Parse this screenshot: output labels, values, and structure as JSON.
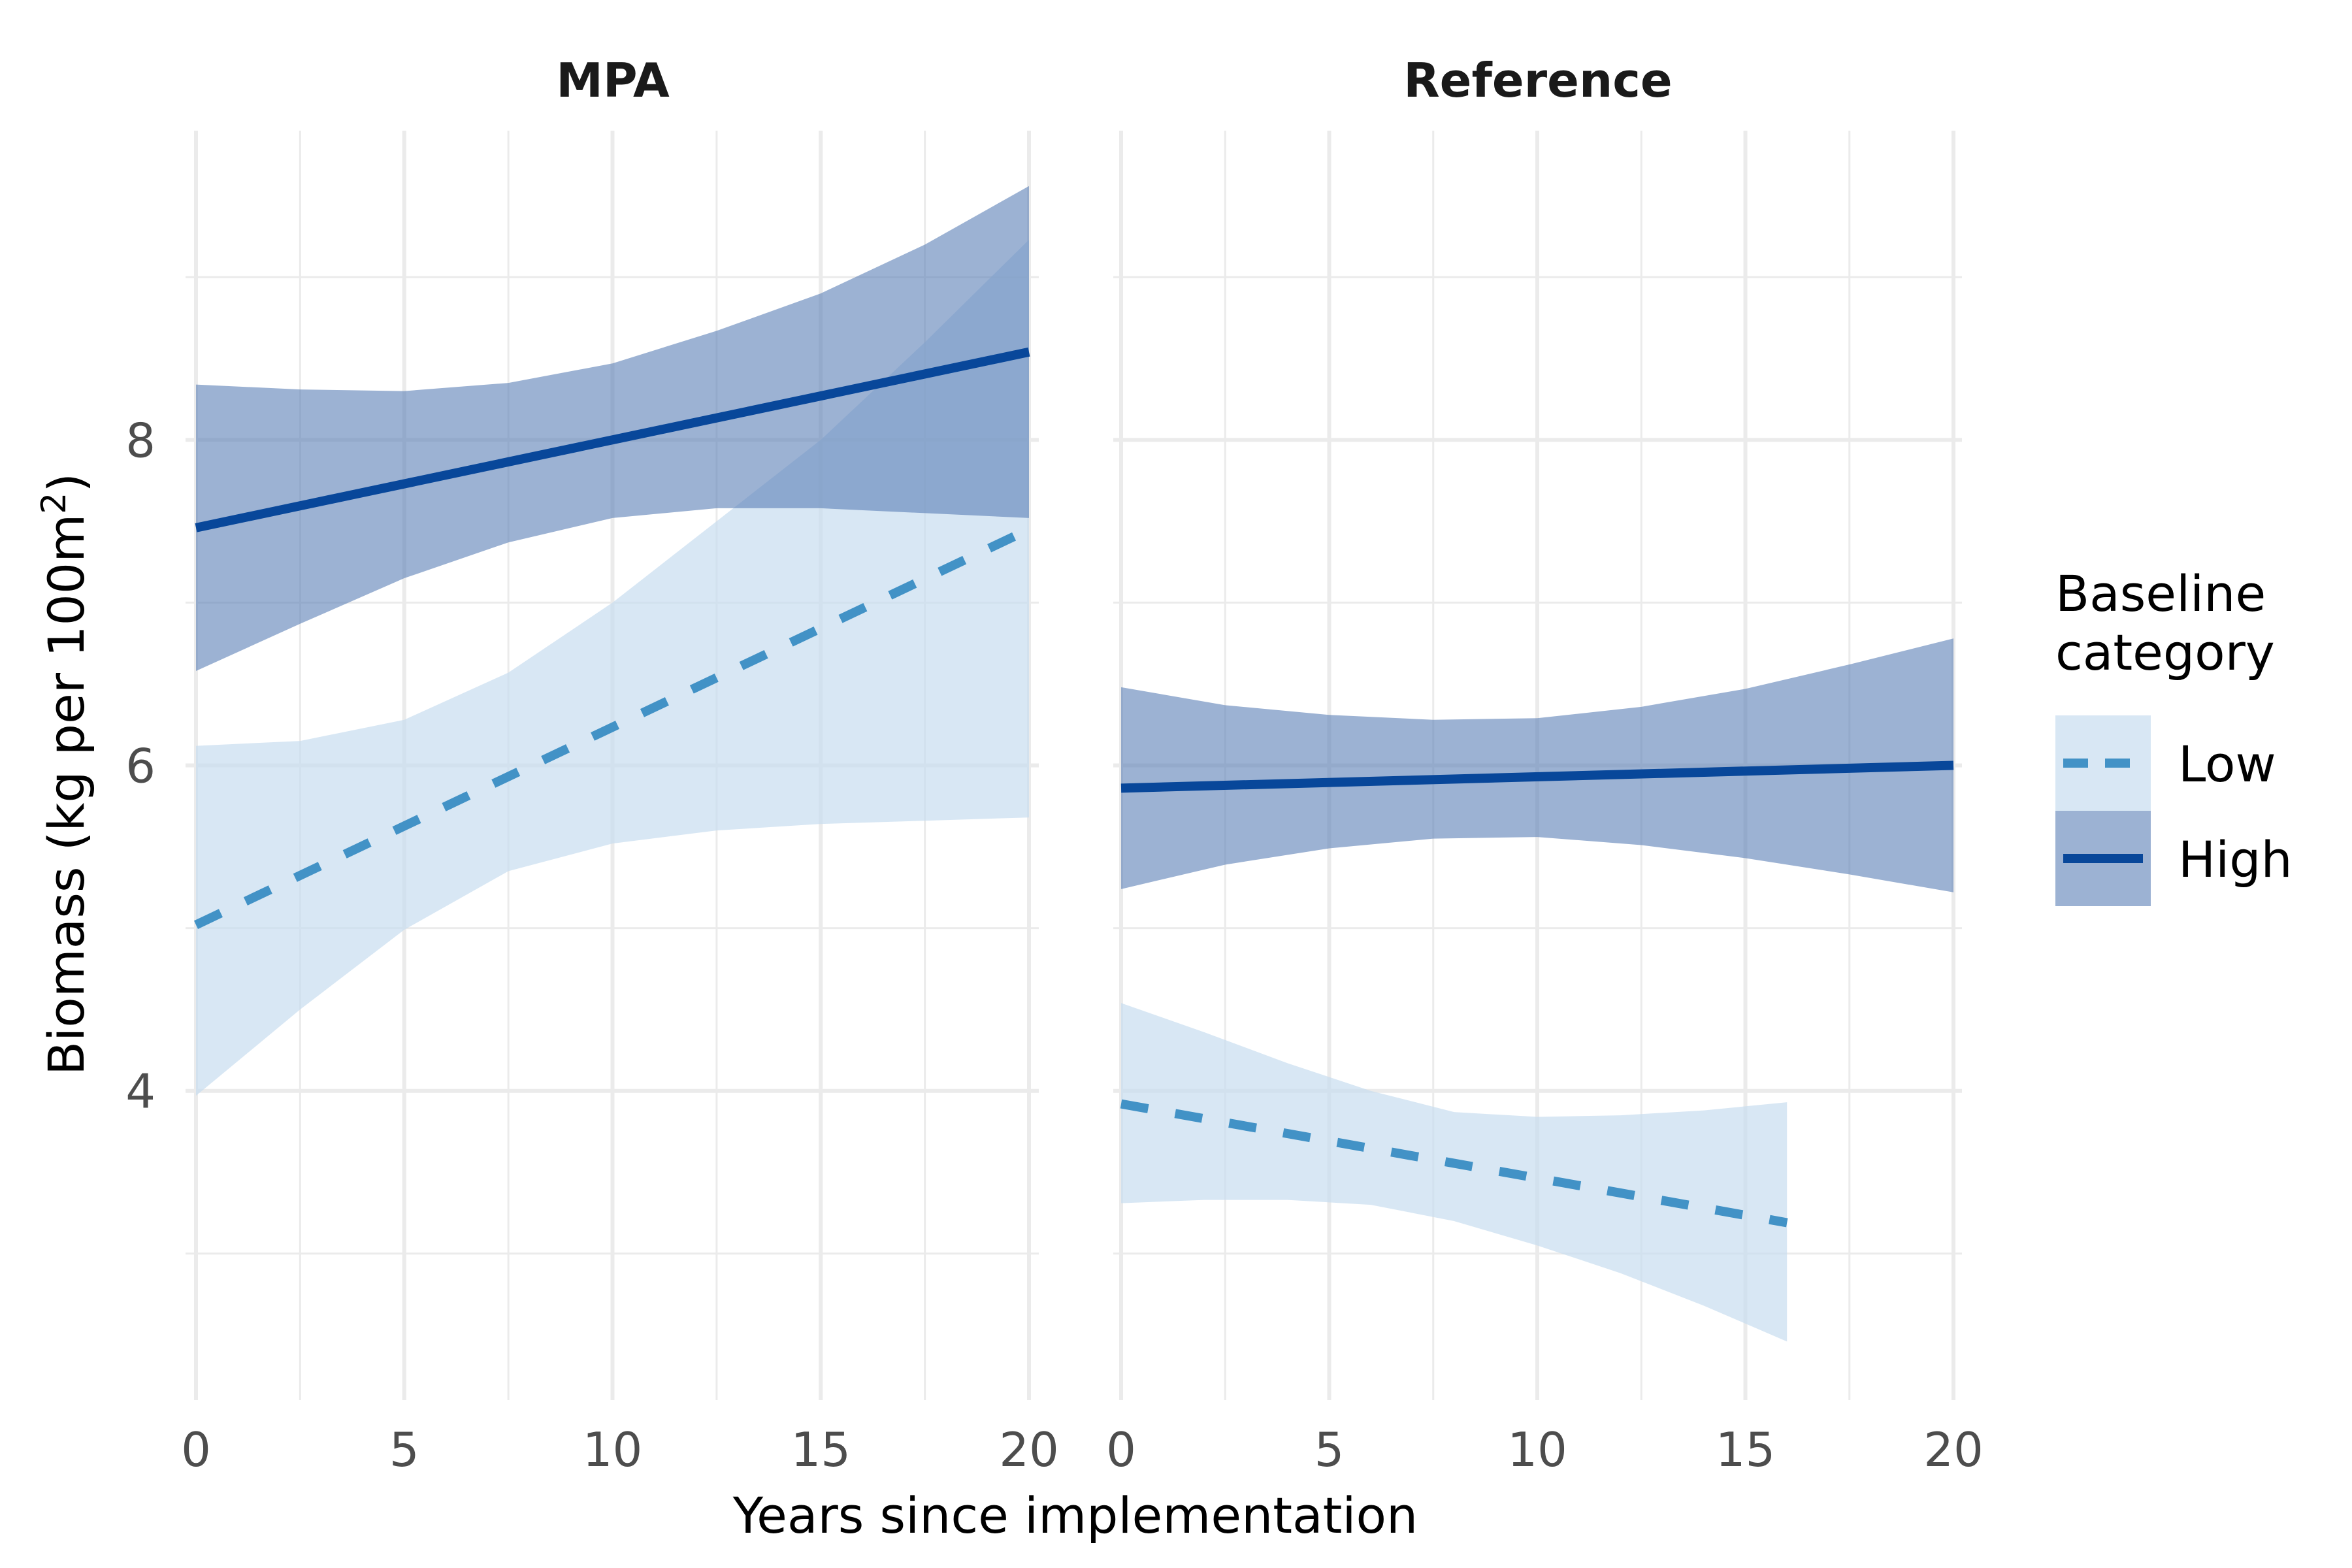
{
  "chart_data": {
    "type": "line",
    "facet_labels": [
      "MPA",
      "Reference"
    ],
    "xlabel": "Years since implementation",
    "ylabel": "Biomass (kg per 100m²)",
    "ylabel_parts": {
      "main": "Biomass (kg per 100m",
      "sup": "2",
      "end": ")"
    },
    "xlim": [
      0,
      20
    ],
    "ylim": [
      2.1,
      9.9
    ],
    "x_ticks": [
      0,
      5,
      10,
      15,
      20
    ],
    "x_tick_labels": [
      "0",
      "5",
      "10",
      "15",
      "20"
    ],
    "y_ticks": [
      4,
      6,
      8
    ],
    "y_tick_labels": [
      "4",
      "6",
      "8"
    ],
    "grid": true,
    "legend": {
      "title_lines": [
        "Baseline",
        "category"
      ],
      "position": "right",
      "entries": [
        "Low",
        "High"
      ]
    },
    "colors": {
      "low_line": "#4292c6",
      "low_ribbon": "#c6dbef",
      "high_line": "#08479a",
      "high_ribbon": "#5a7fb5",
      "grid": "#ebebeb"
    },
    "panels": [
      {
        "name": "MPA",
        "series": [
          {
            "name": "Low",
            "line": "dashed",
            "x": [
              0,
              20
            ],
            "y": [
              5.02,
              7.45
            ],
            "ribbon": {
              "x": [
                0,
                2.5,
                5,
                7.5,
                10,
                12.5,
                15,
                17.5,
                20
              ],
              "lower": [
                3.97,
                4.5,
                4.99,
                5.35,
                5.52,
                5.6,
                5.64,
                5.66,
                5.68
              ],
              "upper": [
                6.12,
                6.15,
                6.28,
                6.57,
                7.0,
                7.5,
                8.0,
                8.6,
                9.23
              ]
            }
          },
          {
            "name": "High",
            "line": "solid",
            "x": [
              0,
              20
            ],
            "y": [
              7.46,
              8.54
            ],
            "ribbon": {
              "x": [
                0,
                2.5,
                5,
                7.5,
                10,
                12.5,
                15,
                17.5,
                20
              ],
              "lower": [
                6.58,
                6.87,
                7.15,
                7.37,
                7.52,
                7.58,
                7.58,
                7.55,
                7.52
              ],
              "upper": [
                8.34,
                8.31,
                8.3,
                8.35,
                8.47,
                8.67,
                8.9,
                9.2,
                9.56
              ]
            }
          }
        ]
      },
      {
        "name": "Reference",
        "series": [
          {
            "name": "Low",
            "line": "dashed",
            "x": [
              0,
              16
            ],
            "y": [
              3.92,
              3.19
            ],
            "ribbon": {
              "x": [
                0,
                2,
                4,
                6,
                8,
                10,
                12,
                14,
                16
              ],
              "lower": [
                3.31,
                3.33,
                3.33,
                3.3,
                3.2,
                3.05,
                2.88,
                2.68,
                2.46
              ],
              "upper": [
                4.54,
                4.36,
                4.17,
                4.0,
                3.87,
                3.84,
                3.85,
                3.88,
                3.93
              ]
            }
          },
          {
            "name": "High",
            "line": "solid",
            "x": [
              0,
              20
            ],
            "y": [
              5.86,
              6.0
            ],
            "ribbon": {
              "x": [
                0,
                2.5,
                5,
                7.5,
                10,
                12.5,
                15,
                17.5,
                20
              ],
              "lower": [
                5.24,
                5.39,
                5.49,
                5.55,
                5.56,
                5.51,
                5.43,
                5.33,
                5.22
              ],
              "upper": [
                6.48,
                6.37,
                6.31,
                6.28,
                6.29,
                6.36,
                6.47,
                6.62,
                6.78
              ]
            }
          }
        ]
      }
    ]
  }
}
